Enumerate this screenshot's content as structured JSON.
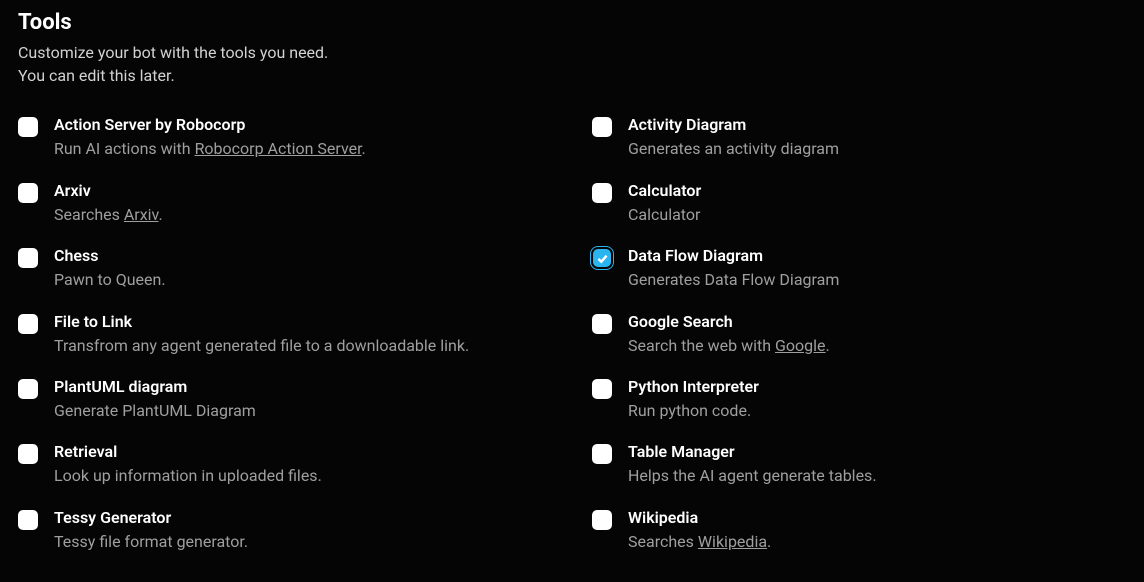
{
  "header": {
    "title": "Tools",
    "subtitle_line1": "Customize your bot with the tools you need.",
    "subtitle_line2": "You can edit this later."
  },
  "colors": {
    "background": "#050505",
    "text_primary": "#ffffff",
    "text_secondary": "#d2d2d2",
    "text_muted": "#9f9f9f",
    "checkbox_unchecked": "#ffffff",
    "checkbox_checked": "#2ab4f0"
  },
  "left_column": [
    {
      "id": "action-server",
      "title": "Action Server by Robocorp",
      "desc_pre": "Run AI actions with ",
      "desc_link": "Robocorp Action Server",
      "desc_post": ".",
      "checked": false
    },
    {
      "id": "arxiv",
      "title": "Arxiv",
      "desc_pre": "Searches ",
      "desc_link": "Arxiv",
      "desc_post": ".",
      "checked": false
    },
    {
      "id": "chess",
      "title": "Chess",
      "desc_pre": "Pawn to Queen.",
      "desc_link": "",
      "desc_post": "",
      "checked": false
    },
    {
      "id": "file-to-link",
      "title": "File to Link",
      "desc_pre": "Transfrom any agent generated file to a downloadable link.",
      "desc_link": "",
      "desc_post": "",
      "checked": false
    },
    {
      "id": "plantuml",
      "title": "PlantUML diagram",
      "desc_pre": "Generate PlantUML Diagram",
      "desc_link": "",
      "desc_post": "",
      "checked": false
    },
    {
      "id": "retrieval",
      "title": "Retrieval",
      "desc_pre": "Look up information in uploaded files.",
      "desc_link": "",
      "desc_post": "",
      "checked": false
    },
    {
      "id": "tessy",
      "title": "Tessy Generator",
      "desc_pre": "Tessy file format generator.",
      "desc_link": "",
      "desc_post": "",
      "checked": false
    }
  ],
  "right_column": [
    {
      "id": "activity-diagram",
      "title": "Activity Diagram",
      "desc_pre": "Generates an activity diagram",
      "desc_link": "",
      "desc_post": "",
      "checked": false
    },
    {
      "id": "calculator",
      "title": "Calculator",
      "desc_pre": "Calculator",
      "desc_link": "",
      "desc_post": "",
      "checked": false
    },
    {
      "id": "data-flow-diagram",
      "title": "Data Flow Diagram",
      "desc_pre": "Generates Data Flow Diagram",
      "desc_link": "",
      "desc_post": "",
      "checked": true
    },
    {
      "id": "google-search",
      "title": "Google Search",
      "desc_pre": "Search the web with ",
      "desc_link": "Google",
      "desc_post": ".",
      "checked": false
    },
    {
      "id": "python-interpreter",
      "title": "Python Interpreter",
      "desc_pre": "Run python code.",
      "desc_link": "",
      "desc_post": "",
      "checked": false
    },
    {
      "id": "table-manager",
      "title": "Table Manager",
      "desc_pre": "Helps the AI agent generate tables.",
      "desc_link": "",
      "desc_post": "",
      "checked": false
    },
    {
      "id": "wikipedia",
      "title": "Wikipedia",
      "desc_pre": "Searches ",
      "desc_link": "Wikipedia",
      "desc_post": ".",
      "checked": false
    }
  ]
}
